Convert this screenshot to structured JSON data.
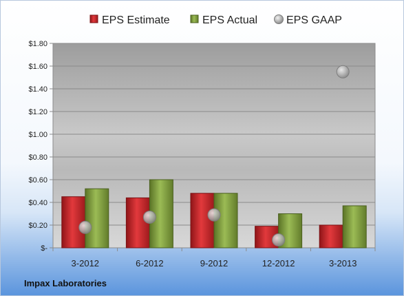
{
  "chart_data": {
    "type": "bar",
    "categories": [
      "3-2012",
      "6-2012",
      "9-2012",
      "12-2012",
      "3-2013"
    ],
    "series": [
      {
        "name": "EPS Estimate",
        "kind": "bar",
        "color": "#c9262a",
        "values": [
          0.45,
          0.44,
          0.48,
          0.19,
          0.2
        ]
      },
      {
        "name": "EPS Actual",
        "kind": "bar",
        "color": "#7e9a3c",
        "values": [
          0.52,
          0.6,
          0.48,
          0.3,
          0.37
        ]
      },
      {
        "name": "EPS GAAP",
        "kind": "scatter",
        "color": "#a9a9a9",
        "values": [
          0.18,
          0.27,
          0.29,
          0.07,
          1.55
        ]
      }
    ],
    "ylim": [
      0,
      1.8
    ],
    "ytick_values": [
      0,
      0.2,
      0.4,
      0.6,
      0.8,
      1.0,
      1.2,
      1.4,
      1.6,
      1.8
    ],
    "ytick_labels": [
      "$-",
      "$0.20",
      "$0.40",
      "$0.60",
      "$0.80",
      "$1.00",
      "$1.20",
      "$1.40",
      "$1.60",
      "$1.80"
    ],
    "grid": true,
    "legend_position": "top",
    "footer": "Impax Laboratories"
  }
}
